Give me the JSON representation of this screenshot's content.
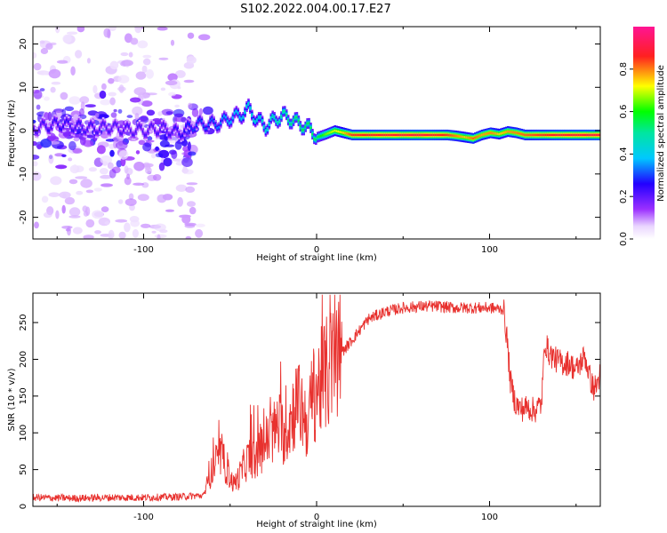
{
  "figure_title": "S102.2022.004.00.17.E27",
  "chart_data": [
    {
      "type": "heatmap",
      "title": "",
      "xlabel": "Height of straight line (km)",
      "ylabel": "Frequency (Hz)",
      "xlim": [
        -164,
        164
      ],
      "ylim": [
        -25,
        24
      ],
      "xticks": [
        -100,
        0,
        100
      ],
      "yticks": [
        -20,
        -10,
        0,
        10,
        20
      ],
      "colorbar": {
        "label": "Normalized spectral amplitude",
        "range": [
          0,
          1
        ],
        "ticks": [
          0.0,
          0.2,
          0.4,
          0.6,
          0.8
        ],
        "colors": [
          "#ffffff",
          "#e6ccff",
          "#9b30ff",
          "#2200ff",
          "#00c8ff",
          "#00ff00",
          "#ffff00",
          "#ff2020",
          "#ff1493"
        ]
      },
      "ridge": {
        "x": [
          -164,
          -150,
          -140,
          -130,
          -120,
          -110,
          -100,
          -90,
          -80,
          -70,
          -60,
          -55,
          -50,
          -45,
          -40,
          -35,
          -30,
          -25,
          -20,
          -15,
          -10,
          -5,
          0,
          5,
          10,
          15,
          20,
          40,
          60,
          75,
          80,
          85,
          90,
          95,
          100,
          105,
          110,
          115,
          120,
          140,
          164
        ],
        "freq": [
          0.5,
          1.5,
          1.0,
          0.5,
          0.8,
          0.2,
          0.0,
          0.5,
          -0.5,
          1.5,
          1.5,
          2.0,
          3.0,
          3.5,
          5.0,
          2.5,
          1.0,
          2.5,
          3.5,
          2.5,
          1.5,
          0.5,
          -1.5,
          -0.8,
          0.0,
          -0.5,
          -1.0,
          -1.0,
          -1.0,
          -1.0,
          -1.2,
          -1.5,
          -1.8,
          -1.0,
          -0.5,
          -0.8,
          -0.2,
          -0.5,
          -1.0,
          -1.0,
          -1.0
        ],
        "amplitude": [
          0.22,
          0.25,
          0.24,
          0.23,
          0.22,
          0.22,
          0.22,
          0.22,
          0.25,
          0.3,
          0.32,
          0.35,
          0.38,
          0.4,
          0.45,
          0.42,
          0.45,
          0.48,
          0.5,
          0.52,
          0.55,
          0.55,
          0.55,
          0.65,
          0.7,
          0.75,
          0.85,
          0.88,
          0.9,
          0.85,
          0.8,
          0.75,
          0.82,
          0.78,
          0.8,
          0.75,
          0.78,
          0.8,
          0.82,
          0.88,
          0.9
        ]
      },
      "scatter_region_x": [
        -164,
        -70
      ],
      "scatter_freq_range": [
        -25,
        24
      ]
    },
    {
      "type": "line",
      "title": "",
      "xlabel": "Height of straight line (km)",
      "ylabel": "SNR (10 * v/v)",
      "xlim": [
        -164,
        164
      ],
      "ylim": [
        0,
        290
      ],
      "xticks": [
        -100,
        0,
        100
      ],
      "yticks": [
        0,
        50,
        100,
        150,
        200,
        250
      ],
      "color": "#e8312e",
      "profile": {
        "x": [
          -164,
          -140,
          -120,
          -100,
          -80,
          -65,
          -62,
          -58,
          -55,
          -52,
          -48,
          -45,
          -42,
          -38,
          -35,
          -32,
          -28,
          -25,
          -22,
          -18,
          -15,
          -12,
          -8,
          -5,
          -2,
          0,
          3,
          6,
          10,
          15,
          20,
          25,
          30,
          40,
          50,
          60,
          70,
          80,
          90,
          100,
          108,
          110,
          112,
          115,
          118,
          122,
          126,
          128,
          130,
          132,
          134,
          138,
          142,
          146,
          150,
          155,
          158,
          160,
          162,
          164
        ],
        "y": [
          12,
          11,
          12,
          12,
          13,
          15,
          40,
          60,
          70,
          50,
          30,
          40,
          55,
          70,
          60,
          80,
          90,
          100,
          110,
          95,
          120,
          140,
          130,
          110,
          150,
          160,
          170,
          180,
          195,
          210,
          225,
          240,
          255,
          265,
          270,
          272,
          272,
          270,
          270,
          270,
          268,
          230,
          170,
          140,
          132,
          135,
          130,
          135,
          140,
          225,
          210,
          200,
          195,
          195,
          185,
          205,
          175,
          160,
          165,
          180
        ]
      }
    }
  ]
}
